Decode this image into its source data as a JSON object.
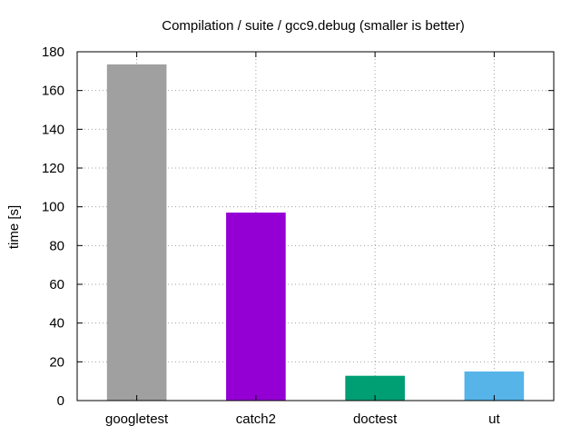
{
  "chart_data": {
    "type": "bar",
    "title": "Compilation / suite / gcc9.debug (smaller is better)",
    "xlabel": "",
    "ylabel": "time [s]",
    "categories": [
      "googletest",
      "catch2",
      "doctest",
      "ut"
    ],
    "values": [
      173.5,
      97,
      12.8,
      15
    ],
    "colors": [
      "#a0a0a0",
      "#9400d3",
      "#009e73",
      "#56b4e9"
    ],
    "ylim": [
      0,
      180
    ],
    "yticks": [
      0,
      20,
      40,
      60,
      80,
      100,
      120,
      140,
      160,
      180
    ],
    "grid": true,
    "legend": "none"
  }
}
